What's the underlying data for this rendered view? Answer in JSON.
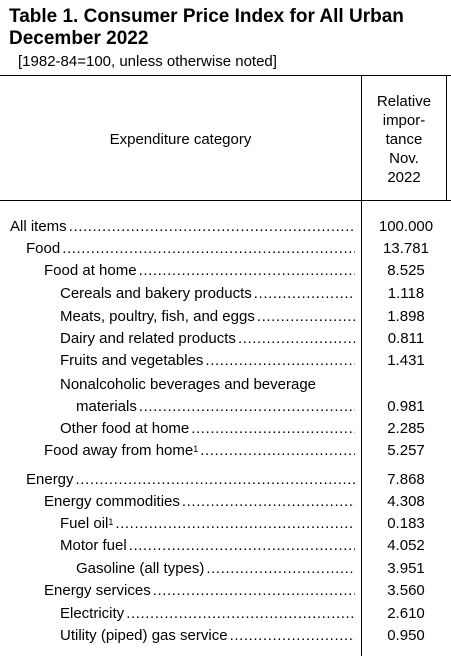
{
  "title_line1": "Table 1. Consumer Price Index for All Urban",
  "title_line2": "December 2022",
  "subtitle": "[1982-84=100, unless otherwise noted]",
  "header": {
    "category": "Expenditure category",
    "relative_lines": [
      "Relative",
      "impor-",
      "tance",
      "Nov.",
      "2022"
    ]
  },
  "rows": [
    {
      "label": "All items",
      "sup": "",
      "value": "100.000"
    },
    {
      "label": "Food",
      "sup": "",
      "value": "13.781"
    },
    {
      "label": "Food at home",
      "sup": "",
      "value": "8.525"
    },
    {
      "label": "Cereals and bakery products",
      "sup": "",
      "value": "1.118"
    },
    {
      "label": "Meats, poultry, fish, and eggs",
      "sup": "",
      "value": "1.898"
    },
    {
      "label": "Dairy and related products",
      "sup": "",
      "value": "0.811"
    },
    {
      "label": "Fruits and vegetables",
      "sup": "",
      "value": "1.431"
    },
    {
      "label": "Nonalcoholic beverages and beverage",
      "sup": "",
      "value": ""
    },
    {
      "label": "materials",
      "sup": "",
      "value": "0.981"
    },
    {
      "label": "Other food at home",
      "sup": "",
      "value": "2.285"
    },
    {
      "label": "Food away from home",
      "sup": "1",
      "value": "5.257"
    },
    {
      "label": "Energy",
      "sup": "",
      "value": "7.868"
    },
    {
      "label": "Energy commodities",
      "sup": "",
      "value": "4.308"
    },
    {
      "label": "Fuel oil",
      "sup": "1",
      "value": "0.183"
    },
    {
      "label": "Motor fuel",
      "sup": "",
      "value": "4.052"
    },
    {
      "label": "Gasoline (all types)",
      "sup": "",
      "value": "3.951"
    },
    {
      "label": "Energy services",
      "sup": "",
      "value": "3.560"
    },
    {
      "label": "Electricity",
      "sup": "",
      "value": "2.610"
    },
    {
      "label": "Utility (piped) gas service",
      "sup": "",
      "value": "0.950"
    }
  ]
}
